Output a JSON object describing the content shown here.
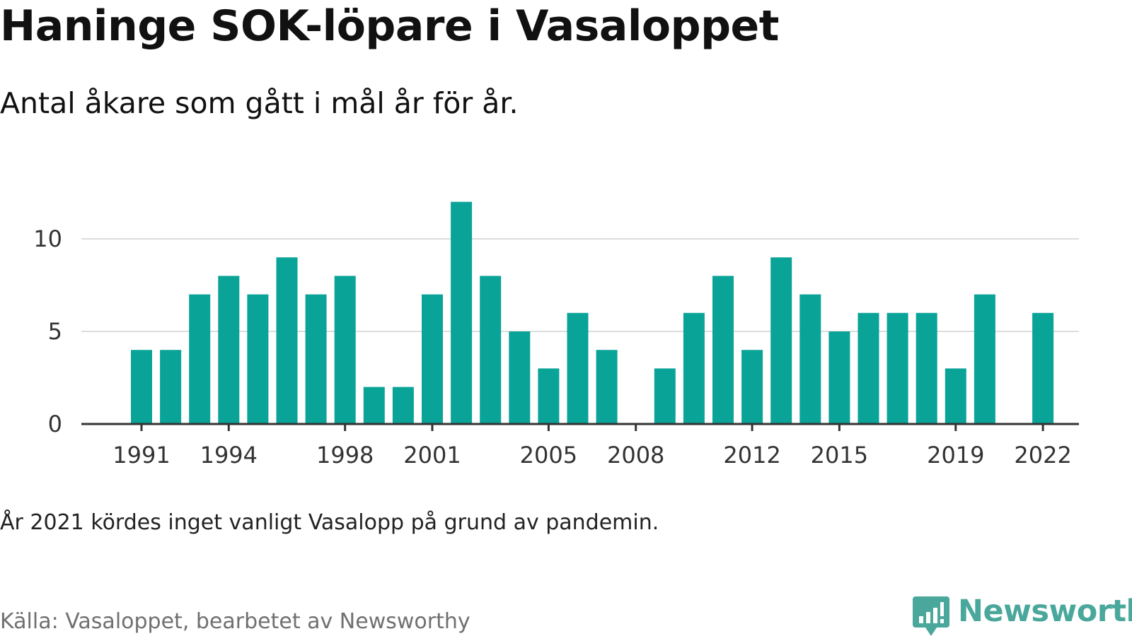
{
  "title": "Haninge SOK-löpare i Vasaloppet",
  "subtitle": "Antal åkare som gått i mål år för år.",
  "note": "År 2021 kördes inget vanligt Vasalopp på grund av pandemin.",
  "source": "Källa: Vasaloppet, bearbetet av Newsworthy",
  "logo": {
    "text": "Newsworthy",
    "icon": "newsworthy-bar-chart-logo-icon"
  },
  "colors": {
    "bar": "#0aa398",
    "grid": "#dddddd",
    "axis": "#333333",
    "logo": "#4aa79b"
  },
  "chart_data": {
    "type": "bar",
    "categories": [
      "1991",
      "1992",
      "1993",
      "1994",
      "1995",
      "1996",
      "1997",
      "1998",
      "1999",
      "2000",
      "2001",
      "2002",
      "2003",
      "2004",
      "2005",
      "2006",
      "2007",
      "2008",
      "2009",
      "2010",
      "2011",
      "2012",
      "2013",
      "2014",
      "2015",
      "2016",
      "2017",
      "2018",
      "2019",
      "2020",
      "2021",
      "2022"
    ],
    "values": [
      4,
      4,
      7,
      8,
      7,
      9,
      7,
      8,
      2,
      2,
      7,
      12,
      8,
      5,
      3,
      6,
      4,
      0,
      3,
      6,
      8,
      4,
      9,
      7,
      5,
      6,
      6,
      6,
      3,
      7,
      0,
      6
    ],
    "x_tick_labels": [
      "1991",
      "1994",
      "1998",
      "2001",
      "2005",
      "2008",
      "2012",
      "2015",
      "2019",
      "2022"
    ],
    "y_ticks": [
      0,
      5,
      10
    ],
    "ylim": [
      0,
      12
    ],
    "grid": true
  }
}
